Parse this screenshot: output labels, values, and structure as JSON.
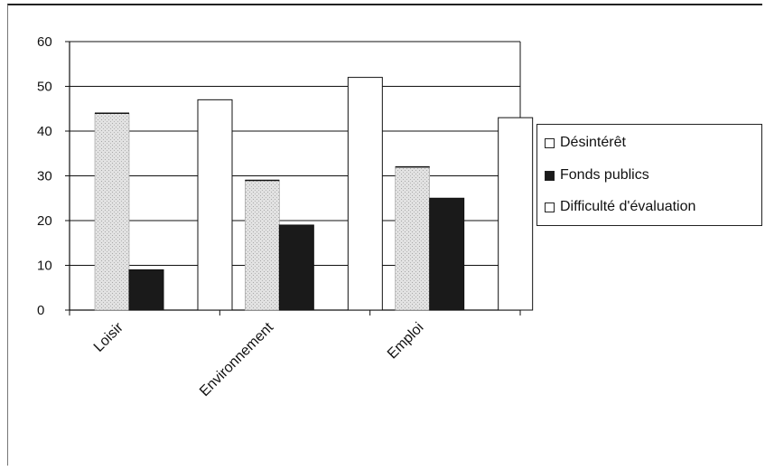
{
  "chart_data": {
    "type": "bar",
    "title": "",
    "xlabel": "",
    "ylabel": "",
    "ylim": [
      0,
      60
    ],
    "yticks": [
      "0",
      "10",
      "20",
      "30",
      "40",
      "50",
      "60"
    ],
    "categories": [
      "Loisir",
      "Environnement",
      "Emploi"
    ],
    "series": [
      {
        "name": "Désintérêt",
        "values": [
          44,
          29,
          32
        ],
        "color": "#d0d0d0"
      },
      {
        "name": "Fonds publics",
        "values": [
          9,
          19,
          25
        ],
        "color": "#1a1a1a"
      },
      {
        "name": "Difficulté d'évaluation",
        "values": [
          47,
          52,
          43
        ],
        "color": "#ffffff"
      }
    ],
    "grid": true,
    "legend": "right"
  }
}
